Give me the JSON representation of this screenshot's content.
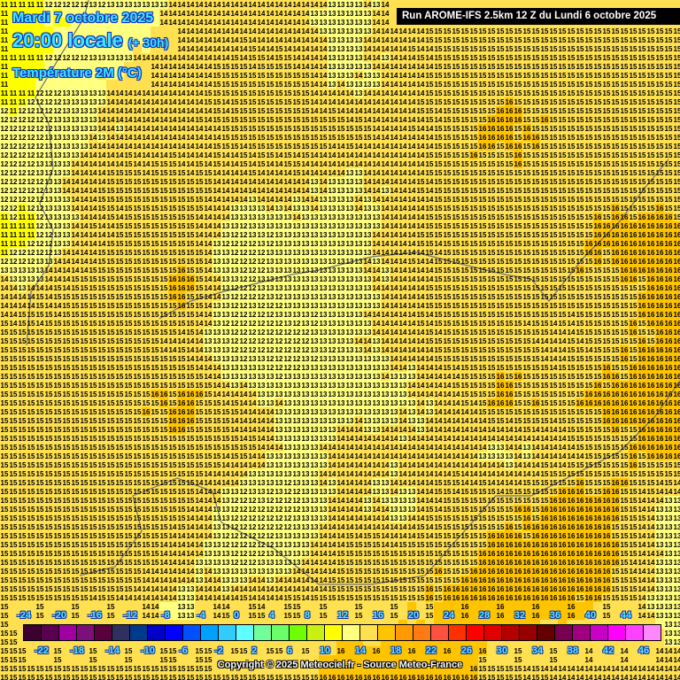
{
  "header": {
    "date": "Mardi 7 octobre 2025",
    "time": "20:00 locale",
    "lead": "(+ 30h)",
    "parameter": "Température 2M (°C)",
    "run": "Run AROME-IFS 2.5km 12 Z du Lundi 6 octobre 2025"
  },
  "footer": {
    "copyright": "Copyright © 2025 Meteociel.fr - Source Meteo-France"
  },
  "field": {
    "unit": "°C",
    "coarse_values": [
      [
        11,
        12,
        13,
        14,
        14,
        14,
        13,
        14,
        15,
        15,
        15,
        15,
        15
      ],
      [
        11,
        13,
        14,
        14,
        15,
        15,
        13,
        14,
        15,
        15,
        15,
        15,
        15
      ],
      [
        12,
        13,
        14,
        14,
        15,
        15,
        15,
        14,
        15,
        16,
        15,
        15,
        15
      ],
      [
        12,
        14,
        15,
        15,
        14,
        14,
        13,
        14,
        15,
        15,
        15,
        15,
        15
      ],
      [
        11,
        14,
        15,
        15,
        12,
        13,
        13,
        14,
        15,
        15,
        15,
        16,
        16
      ],
      [
        14,
        15,
        15,
        16,
        12,
        13,
        13,
        14,
        15,
        15,
        15,
        15,
        16
      ],
      [
        15,
        15,
        15,
        14,
        12,
        12,
        13,
        14,
        15,
        15,
        14,
        15,
        16
      ],
      [
        15,
        15,
        15,
        16,
        14,
        13,
        13,
        13,
        14,
        16,
        15,
        16,
        16
      ],
      [
        15,
        15,
        15,
        15,
        15,
        13,
        14,
        14,
        14,
        13,
        14,
        15,
        16
      ],
      [
        15,
        15,
        15,
        15,
        12,
        12,
        14,
        13,
        15,
        15,
        16,
        16,
        13
      ],
      [
        15,
        15,
        15,
        14,
        12,
        13,
        15,
        15,
        15,
        16,
        16,
        16,
        13
      ],
      [
        15,
        15,
        14,
        13,
        15,
        15,
        15,
        15,
        16,
        16,
        16,
        15,
        13
      ],
      [
        15,
        15,
        15,
        15,
        15,
        15,
        16,
        16,
        16,
        15,
        14,
        14,
        14
      ]
    ]
  },
  "legend": {
    "top_labels": [
      "-24",
      "-20",
      "-16",
      "-12",
      "-8",
      "-4",
      "0",
      "4",
      "8",
      "12",
      "16",
      "20",
      "24",
      "28",
      "32",
      "36",
      "40",
      "44"
    ],
    "bottom_labels": [
      "-22",
      "-18",
      "-14",
      "-10",
      "-6",
      "-2",
      "2",
      "6",
      "10",
      "14",
      "18",
      "22",
      "26",
      "30",
      "34",
      "38",
      "42",
      "46"
    ],
    "min": -24,
    "step": 2,
    "colors": [
      "#3c0032",
      "#5a0050",
      "#a000a0",
      "#7a1078",
      "#5a003c",
      "#303060",
      "#003a8c",
      "#0000c8",
      "#0000ff",
      "#0050ff",
      "#00a0ff",
      "#30ccff",
      "#60ffff",
      "#70ff9a",
      "#6aff6a",
      "#70ff00",
      "#c8f010",
      "#ffff00",
      "#ffff80",
      "#ffe050",
      "#ffc400",
      "#ff9a00",
      "#ff7a10",
      "#ff5040",
      "#ff3000",
      "#ff0000",
      "#e00000",
      "#b40000",
      "#960000",
      "#640000",
      "#780050",
      "#a00080",
      "#c800c8",
      "#ff00ff",
      "#ff40ff",
      "#ff88ff"
    ]
  },
  "colors": {
    "coastline": "#707070",
    "title": "#40e8ff",
    "run_bg": "#000000"
  }
}
